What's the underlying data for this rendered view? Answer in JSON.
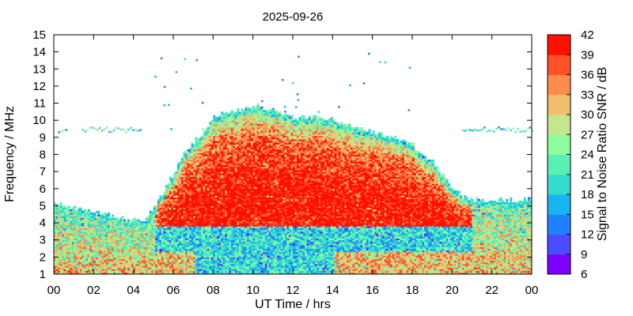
{
  "chart_data": {
    "type": "heatmap",
    "title": "2025-09-26",
    "xlabel": "UT Time / hrs",
    "ylabel": "Frequency / MHz",
    "colorbar_label": "Signal to Noise Ratio SNR / dB",
    "x_range": [
      0,
      24
    ],
    "y_range": [
      1,
      15
    ],
    "x_ticks": [
      "00",
      "02",
      "04",
      "06",
      "08",
      "10",
      "12",
      "14",
      "16",
      "18",
      "20",
      "22",
      "00"
    ],
    "y_ticks": [
      "1",
      "2",
      "3",
      "4",
      "5",
      "6",
      "7",
      "8",
      "9",
      "10",
      "11",
      "12",
      "13",
      "14",
      "15"
    ],
    "colorbar_ticks": [
      "6",
      "9",
      "12",
      "15",
      "18",
      "21",
      "24",
      "27",
      "30",
      "33",
      "36",
      "39",
      "42"
    ],
    "colorbar_range": [
      6,
      42
    ],
    "colorbar_colors": [
      "#8000ff",
      "#4c4cff",
      "#2080ff",
      "#18b4f0",
      "#34dcd0",
      "#5af0b4",
      "#8cfc9c",
      "#c4e68c",
      "#f0c070",
      "#ff8c4c",
      "#ff5028",
      "#ff1000"
    ],
    "upper_freq_limit_profile": {
      "hours": [
        0,
        2,
        3.5,
        4.5,
        5.5,
        6.5,
        7.5,
        8,
        9,
        10,
        11,
        12,
        13,
        14,
        15,
        16,
        17,
        18,
        19,
        20,
        20.5,
        21,
        22,
        23,
        24
      ],
      "mhz": [
        5.1,
        4.6,
        4.2,
        4.0,
        5.8,
        8.0,
        9.3,
        10.2,
        10.5,
        10.8,
        10.6,
        10.1,
        10.2,
        10.0,
        9.6,
        9.2,
        9.0,
        8.5,
        7.5,
        6.0,
        5.5,
        5.3,
        5.3,
        5.3,
        5.3
      ]
    },
    "sporadic_layer": {
      "start_hour": 0,
      "end_hour": 24,
      "freq_mhz": 9.5
    },
    "snr_scale_note": "color encodes SNR in dB (6 to 42)"
  }
}
